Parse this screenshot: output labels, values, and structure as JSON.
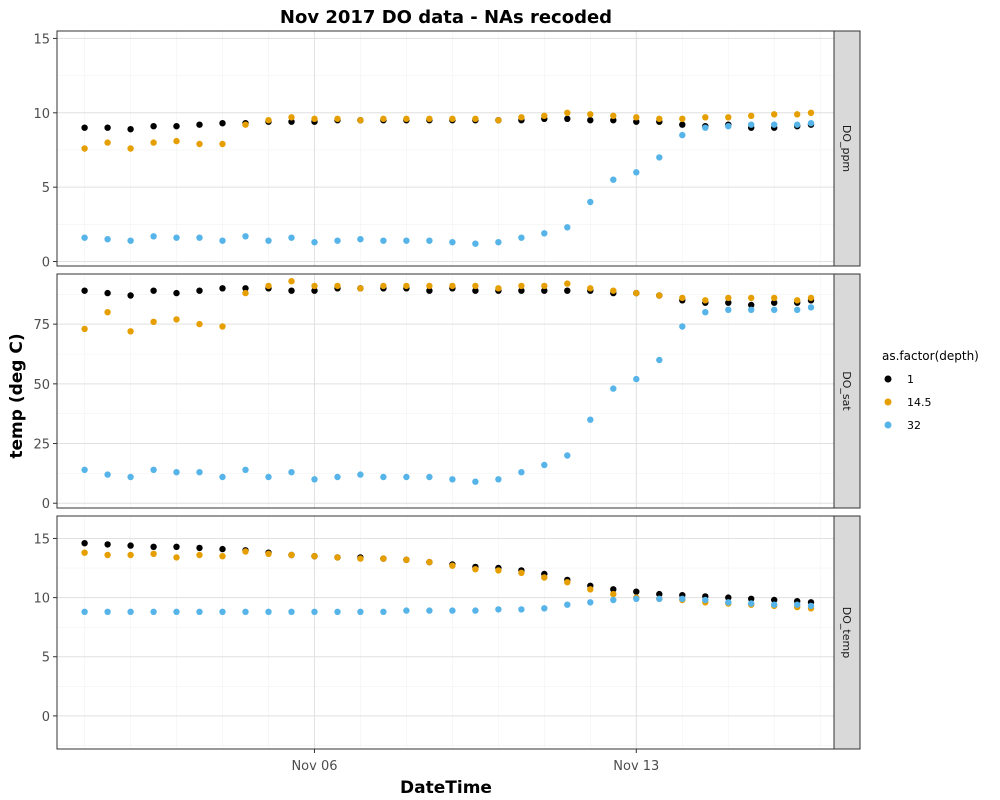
{
  "chart_data": {
    "type": "scatter",
    "title": "Nov 2017 DO data - NAs recoded",
    "xlabel": "DateTime",
    "ylabel": "temp (deg C)",
    "x_tick_labels": [
      "Nov 06",
      "Nov 13"
    ],
    "x_ticks_day": [
      6,
      13
    ],
    "xlim_day": [
      0.4,
      17.3
    ],
    "legend": {
      "title": "as.factor(depth)",
      "position": "right",
      "entries": [
        {
          "label": "1",
          "color": "#000000"
        },
        {
          "label": "14.5",
          "color": "#E69F00"
        },
        {
          "label": "32",
          "color": "#56B4E9"
        }
      ]
    },
    "grid": true,
    "panels": [
      {
        "strip": "DO_ppm",
        "ylim": [
          -0.3,
          15.5
        ],
        "y_ticks": [
          "0",
          "5",
          "10",
          "15"
        ],
        "y_tick_values": [
          0,
          5,
          10,
          15
        ],
        "series": [
          {
            "name": "1",
            "color": "#000000",
            "x_day": [
              1,
              1.5,
              2,
              2.5,
              3,
              3.5,
              4,
              4.5,
              5,
              5.5,
              6,
              6.5,
              7,
              7.5,
              8,
              8.5,
              9,
              9.5,
              10,
              10.5,
              11,
              11.5,
              12,
              12.5,
              13,
              13.5,
              14,
              14.5,
              15,
              15.5,
              16,
              16.5,
              16.8
            ],
            "y": [
              9.0,
              9.0,
              8.9,
              9.1,
              9.1,
              9.2,
              9.3,
              9.3,
              9.4,
              9.4,
              9.4,
              9.5,
              9.5,
              9.5,
              9.5,
              9.5,
              9.5,
              9.5,
              9.5,
              9.5,
              9.6,
              9.6,
              9.5,
              9.5,
              9.4,
              9.4,
              9.2,
              9.1,
              9.2,
              9.0,
              9.0,
              9.1,
              9.2
            ]
          },
          {
            "name": "14.5",
            "color": "#E69F00",
            "x_day": [
              1,
              1.5,
              2,
              2.5,
              3,
              3.5,
              4,
              4.5,
              5,
              5.5,
              6,
              6.5,
              7,
              7.5,
              8,
              8.5,
              9,
              9.5,
              10,
              10.5,
              11,
              11.5,
              12,
              12.5,
              13,
              13.5,
              14,
              14.5,
              15,
              15.5,
              16,
              16.5,
              16.8
            ],
            "y": [
              7.6,
              8.0,
              7.6,
              8.0,
              8.1,
              7.9,
              7.9,
              9.2,
              9.5,
              9.7,
              9.6,
              9.6,
              9.5,
              9.6,
              9.6,
              9.6,
              9.6,
              9.6,
              9.5,
              9.7,
              9.8,
              10.0,
              9.9,
              9.8,
              9.7,
              9.6,
              9.6,
              9.7,
              9.7,
              9.8,
              9.9,
              9.9,
              10.0
            ]
          },
          {
            "name": "32",
            "color": "#56B4E9",
            "x_day": [
              1,
              1.5,
              2,
              2.5,
              3,
              3.5,
              4,
              4.5,
              5,
              5.5,
              6,
              6.5,
              7,
              7.5,
              8,
              8.5,
              9,
              9.5,
              10,
              10.5,
              11,
              11.5,
              12,
              12.5,
              13,
              13.5,
              14,
              14.5,
              15,
              15.5,
              16,
              16.5,
              16.8
            ],
            "y": [
              1.6,
              1.5,
              1.4,
              1.7,
              1.6,
              1.6,
              1.4,
              1.7,
              1.4,
              1.6,
              1.3,
              1.4,
              1.5,
              1.4,
              1.4,
              1.4,
              1.3,
              1.2,
              1.3,
              1.6,
              1.9,
              2.3,
              4.0,
              5.5,
              6.0,
              7.0,
              8.5,
              9.0,
              9.1,
              9.2,
              9.2,
              9.2,
              9.3
            ]
          }
        ]
      },
      {
        "strip": "DO_sat",
        "ylim": [
          -2,
          96
        ],
        "y_ticks": [
          "0",
          "25",
          "50",
          "75"
        ],
        "y_tick_values": [
          0,
          25,
          50,
          75
        ],
        "series": [
          {
            "name": "1",
            "color": "#000000",
            "x_day": [
              1,
              1.5,
              2,
              2.5,
              3,
              3.5,
              4,
              4.5,
              5,
              5.5,
              6,
              6.5,
              7,
              7.5,
              8,
              8.5,
              9,
              9.5,
              10,
              10.5,
              11,
              11.5,
              12,
              12.5,
              13,
              13.5,
              14,
              14.5,
              15,
              15.5,
              16,
              16.5,
              16.8
            ],
            "y": [
              89,
              88,
              87,
              89,
              88,
              89,
              90,
              90,
              90,
              89,
              89,
              90,
              90,
              90,
              90,
              89,
              90,
              89,
              89,
              89,
              89,
              89,
              89,
              88,
              88,
              87,
              85,
              84,
              84,
              83,
              84,
              84,
              85
            ]
          },
          {
            "name": "14.5",
            "color": "#E69F00",
            "x_day": [
              1,
              1.5,
              2,
              2.5,
              3,
              3.5,
              4,
              4.5,
              5,
              5.5,
              6,
              6.5,
              7,
              7.5,
              8,
              8.5,
              9,
              9.5,
              10,
              10.5,
              11,
              11.5,
              12,
              12.5,
              13,
              13.5,
              14,
              14.5,
              15,
              15.5,
              16,
              16.5,
              16.8
            ],
            "y": [
              73,
              80,
              72,
              76,
              77,
              75,
              74,
              88,
              91,
              93,
              91,
              91,
              90,
              91,
              91,
              91,
              91,
              91,
              90,
              91,
              91,
              92,
              90,
              89,
              88,
              87,
              86,
              85,
              86,
              86,
              86,
              85,
              86
            ]
          },
          {
            "name": "32",
            "color": "#56B4E9",
            "x_day": [
              1,
              1.5,
              2,
              2.5,
              3,
              3.5,
              4,
              4.5,
              5,
              5.5,
              6,
              6.5,
              7,
              7.5,
              8,
              8.5,
              9,
              9.5,
              10,
              10.5,
              11,
              11.5,
              12,
              12.5,
              13,
              13.5,
              14,
              14.5,
              15,
              15.5,
              16,
              16.5,
              16.8
            ],
            "y": [
              14,
              12,
              11,
              14,
              13,
              13,
              11,
              14,
              11,
              13,
              10,
              11,
              12,
              11,
              11,
              11,
              10,
              9,
              10,
              13,
              16,
              20,
              35,
              48,
              52,
              60,
              74,
              80,
              81,
              81,
              81,
              81,
              82
            ]
          }
        ]
      },
      {
        "strip": "DO_temp",
        "ylim": [
          -2.8,
          16.9
        ],
        "y_ticks": [
          "0",
          "5",
          "10",
          "15"
        ],
        "y_tick_values": [
          0,
          5,
          10,
          15
        ],
        "series": [
          {
            "name": "1",
            "color": "#000000",
            "x_day": [
              1,
              1.5,
              2,
              2.5,
              3,
              3.5,
              4,
              4.5,
              5,
              5.5,
              6,
              6.5,
              7,
              7.5,
              8,
              8.5,
              9,
              9.5,
              10,
              10.5,
              11,
              11.5,
              12,
              12.5,
              13,
              13.5,
              14,
              14.5,
              15,
              15.5,
              16,
              16.5,
              16.8
            ],
            "y": [
              14.6,
              14.5,
              14.4,
              14.3,
              14.3,
              14.2,
              14.1,
              14.0,
              13.8,
              13.6,
              13.5,
              13.4,
              13.4,
              13.3,
              13.2,
              13.0,
              12.8,
              12.6,
              12.5,
              12.3,
              12.0,
              11.5,
              11.0,
              10.7,
              10.5,
              10.3,
              10.2,
              10.1,
              10.0,
              9.9,
              9.8,
              9.7,
              9.6
            ]
          },
          {
            "name": "14.5",
            "color": "#E69F00",
            "x_day": [
              1,
              1.5,
              2,
              2.5,
              3,
              3.5,
              4,
              4.5,
              5,
              5.5,
              6,
              6.5,
              7,
              7.5,
              8,
              8.5,
              9,
              9.5,
              10,
              10.5,
              11,
              11.5,
              12,
              12.5,
              13,
              13.5,
              14,
              14.5,
              15,
              15.5,
              16,
              16.5,
              16.8
            ],
            "y": [
              13.8,
              13.6,
              13.6,
              13.7,
              13.4,
              13.6,
              13.5,
              13.9,
              13.7,
              13.6,
              13.5,
              13.4,
              13.3,
              13.3,
              13.2,
              13.0,
              12.7,
              12.4,
              12.3,
              12.1,
              11.7,
              11.3,
              10.7,
              10.3,
              10.0,
              9.9,
              9.8,
              9.6,
              9.5,
              9.4,
              9.3,
              9.2,
              9.1
            ]
          },
          {
            "name": "32",
            "color": "#56B4E9",
            "x_day": [
              1,
              1.5,
              2,
              2.5,
              3,
              3.5,
              4,
              4.5,
              5,
              5.5,
              6,
              6.5,
              7,
              7.5,
              8,
              8.5,
              9,
              9.5,
              10,
              10.5,
              11,
              11.5,
              12,
              12.5,
              13,
              13.5,
              14,
              14.5,
              15,
              15.5,
              16,
              16.5,
              16.8
            ],
            "y": [
              8.8,
              8.8,
              8.8,
              8.8,
              8.8,
              8.8,
              8.8,
              8.8,
              8.8,
              8.8,
              8.8,
              8.8,
              8.8,
              8.8,
              8.9,
              8.9,
              8.9,
              8.9,
              9.0,
              9.0,
              9.1,
              9.4,
              9.6,
              9.8,
              9.9,
              9.9,
              9.9,
              9.8,
              9.6,
              9.5,
              9.4,
              9.4,
              9.3
            ]
          }
        ]
      }
    ]
  }
}
